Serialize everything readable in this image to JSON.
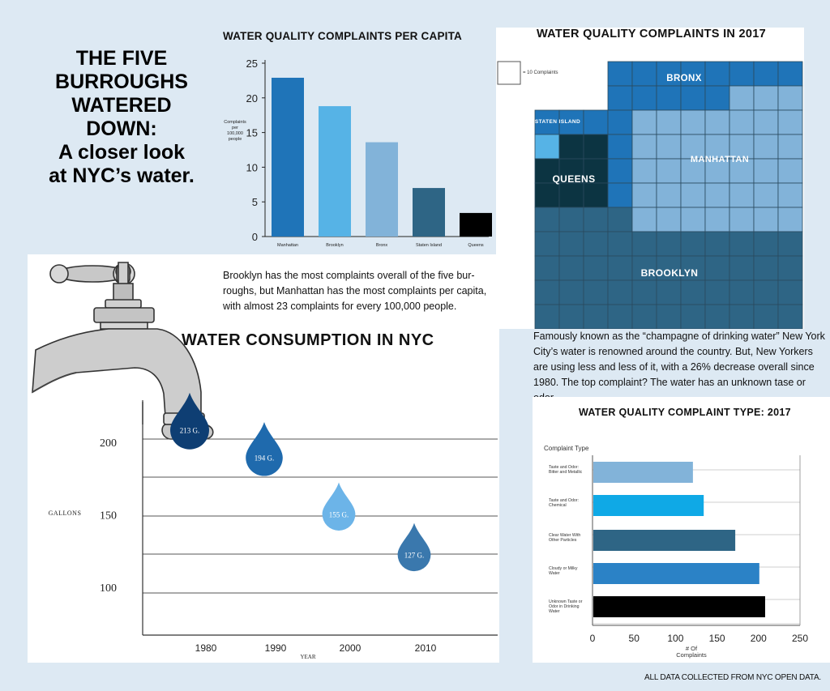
{
  "main_title": {
    "lines": [
      "THE FIVE",
      "BURROUGHS",
      "WATERED",
      "DOWN:",
      "A closer look",
      "at NYC’s water."
    ]
  },
  "brooklyn_text": "Brooklyn has the most complaints overall of the five bur- roughs, but Manhattan has the most complaints per capita, with almost 23 complaints for every 100,000 people.",
  "grid_description": "Famously known as the “champagne of drinking water” New York City’s water is renowned around the country. But, New Yorkers are using less and less of it, with a 26% decrease overall since 1980. The top complaint? The water has an unknown tase or odor.",
  "source_note": "ALL DATA COLLECTED FROM NYC OPEN DATA.",
  "colors": {
    "background": "#dde9f3",
    "manhattan": "#1f74b8",
    "brooklyn": "#56b3e6",
    "bronx": "#82b3d9",
    "staten_island": "#2e6585",
    "queens": "#000000"
  },
  "chart_data": [
    {
      "id": "per-capita",
      "type": "bar",
      "title": "WATER QUALITY COMPLAINTS PER CAPITA",
      "ylabel": "Complaints per 100,000 people",
      "categories": [
        "Manhattan",
        "Brooklyn",
        "Bronx",
        "Staten Island",
        "Queens"
      ],
      "values": [
        22.9,
        18.8,
        13.6,
        7.0,
        3.4
      ],
      "bar_colors": [
        "#1f74b8",
        "#56b3e6",
        "#82b3d9",
        "#2e6585",
        "#000000"
      ],
      "ylim": [
        0,
        25
      ],
      "yticks": [
        0,
        5,
        10,
        15,
        20,
        25
      ],
      "grid": false
    },
    {
      "id": "grid-2017",
      "type": "heatmap",
      "title": "WATER QUALITY COMPLAINTS IN 2017",
      "legend": "= 10 Complaints",
      "labels": [
        "BRONX",
        "STATEN ISLAND",
        "QUEENS",
        "MANHATTAN",
        "BROOKLYN"
      ],
      "rows": 11,
      "cols": 11,
      "color_keys": {
        "b": "#1f74b8",
        "s": "#56b3e6",
        "q": "#0c3442",
        "m": "#82b3d9",
        "k": "#2e6585",
        "x": "#ffffff"
      },
      "cells": [
        "xxxbbbbbbbb",
        "xxxbbbbbmmm",
        "bbbbmmmmmmm",
        "sqqbmmmmmmm",
        "qqqbmmmmmmm",
        "qqqbmmmmmmm",
        "kkkkmmmmmmm",
        "kkkkkkkkkkk",
        "kkkkkkkkkkk",
        "kkkkkkkkkkk",
        "kkkkkkkkkkk"
      ]
    },
    {
      "id": "consumption",
      "type": "scatter",
      "title": "WATER CONSUMPTION IN NYC",
      "xlabel": "YEAR",
      "ylabel": "GALLONS",
      "x": [
        1980,
        1990,
        2000,
        2010
      ],
      "values": [
        213,
        194,
        155,
        127
      ],
      "point_labels": [
        "213 G.",
        "194 G.",
        "155 G.",
        "127 G."
      ],
      "point_colors": [
        "#0e3e73",
        "#1f6aad",
        "#6cb4e8",
        "#3a78ad"
      ],
      "xticks": [
        "1980",
        "1990",
        "2000",
        "2010"
      ],
      "yticks": [
        100,
        150,
        200
      ],
      "ylim": [
        80,
        220
      ]
    },
    {
      "id": "complaint-type",
      "type": "bar",
      "orientation": "horizontal",
      "title": "WATER QUALITY COMPLAINT TYPE: 2017",
      "ylabel": "Complaint Type",
      "xlabel": "# Of Complaints",
      "categories": [
        "Taste and Odor: Bitter and Metallic",
        "Taste and Odor: Chemical",
        "Clear Water With Other Particles",
        "Cloudy or Milky Water",
        "Unknown Taste or Odor in Drinking Water"
      ],
      "values": [
        120,
        133,
        171,
        200,
        207
      ],
      "bar_colors": [
        "#82b3d9",
        "#0fa9e6",
        "#2e6585",
        "#2b82c6",
        "#000000"
      ],
      "xlim": [
        0,
        250
      ],
      "xticks": [
        0,
        50,
        100,
        150,
        200,
        250
      ]
    }
  ]
}
